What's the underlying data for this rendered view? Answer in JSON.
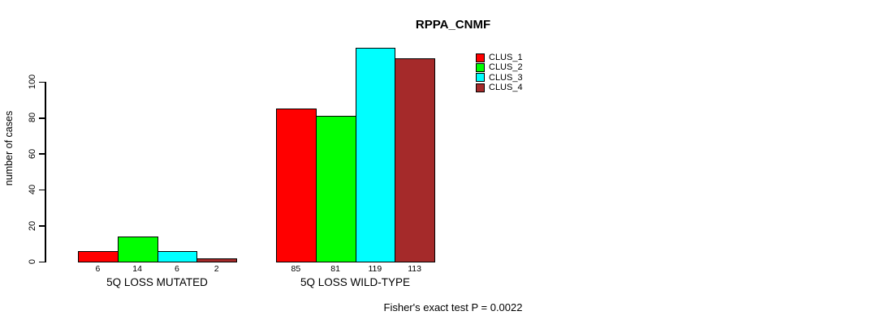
{
  "chart_data": {
    "type": "bar",
    "title": "RPPA_CNMF",
    "ylabel": "number of cases",
    "xlabel": "",
    "categories": [
      "5Q LOSS MUTATED",
      "5Q LOSS WILD-TYPE"
    ],
    "series": [
      {
        "name": "CLUS_1",
        "color": "#FF0000",
        "values": [
          6,
          85
        ]
      },
      {
        "name": "CLUS_2",
        "color": "#00FF00",
        "values": [
          14,
          81
        ]
      },
      {
        "name": "CLUS_3",
        "color": "#00FFFF",
        "values": [
          6,
          119
        ]
      },
      {
        "name": "CLUS_4",
        "color": "#A52A2A",
        "values": [
          2,
          113
        ]
      }
    ],
    "yticks": [
      0,
      20,
      40,
      60,
      80,
      100
    ],
    "ylim": [
      0,
      120
    ],
    "grid": false,
    "bar_value_labels": true,
    "legend_position": "top-right",
    "annotation": "Fisher's exact test P = 0.0022"
  }
}
